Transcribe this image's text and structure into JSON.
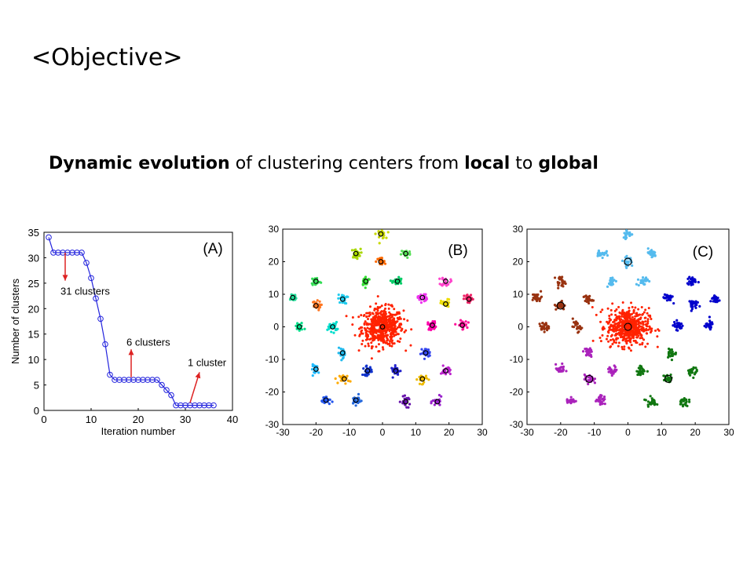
{
  "slide": {
    "title": "<Objective>",
    "subtitle": {
      "bold1": "Dynamic evolution",
      "text1": " of clustering centers from ",
      "bold2": "local",
      "text2": " to ",
      "bold3": "global"
    }
  },
  "chart_data": [
    {
      "type": "line",
      "panel_label": "(A)",
      "xlabel": "Iteration number",
      "ylabel": "Number of clusters",
      "xlim": [
        0,
        40
      ],
      "ylim": [
        0,
        35
      ],
      "x_ticks": [
        0,
        10,
        20,
        30,
        40
      ],
      "y_ticks": [
        0,
        5,
        10,
        15,
        20,
        25,
        30,
        35
      ],
      "line_color": "#2222dd",
      "x": [
        1,
        2,
        3,
        4,
        5,
        6,
        7,
        8,
        9,
        10,
        11,
        12,
        13,
        14,
        15,
        16,
        17,
        18,
        19,
        20,
        21,
        22,
        23,
        24,
        25,
        26,
        27,
        28,
        29,
        30,
        31,
        32,
        33,
        34,
        35,
        36
      ],
      "y": [
        34,
        31,
        31,
        31,
        31,
        31,
        31,
        31,
        29,
        26,
        22,
        18,
        13,
        7,
        6,
        6,
        6,
        6,
        6,
        6,
        6,
        6,
        6,
        6,
        5,
        4,
        3,
        1,
        1,
        1,
        1,
        1,
        1,
        1,
        1,
        1
      ],
      "annotations": [
        {
          "text": "31 clusters",
          "x": 3.5,
          "y": 23.5,
          "arrow_from": [
            4.5,
            31
          ],
          "arrow_to": [
            4.5,
            25.5
          ],
          "arrow_color": "#dd2222"
        },
        {
          "text": "6 clusters",
          "x": 17.5,
          "y": 13.5,
          "arrow_from": [
            18.5,
            6.5
          ],
          "arrow_to": [
            18.5,
            12
          ],
          "arrow_color": "#dd2222"
        },
        {
          "text": "1 cluster",
          "x": 30.5,
          "y": 9.5,
          "arrow_from": [
            31,
            1.5
          ],
          "arrow_to": [
            33,
            7.5
          ],
          "arrow_color": "#dd2222"
        }
      ]
    },
    {
      "type": "scatter",
      "panel_label": "(B)",
      "xlim": [
        -30,
        30
      ],
      "ylim": [
        -30,
        30
      ],
      "x_ticks": [
        -30,
        -20,
        -10,
        0,
        10,
        20,
        30
      ],
      "y_ticks": [
        -30,
        -20,
        -10,
        0,
        10,
        20,
        30
      ],
      "center_marker": "black ring",
      "clusters": [
        {
          "x": 0,
          "y": 0,
          "color": "#ff2200",
          "size": "large"
        },
        {
          "x": -0.5,
          "y": 28.5,
          "color": "#c8d800"
        },
        {
          "x": -8,
          "y": 22.5,
          "color": "#a8d800"
        },
        {
          "x": -0.5,
          "y": 20,
          "color": "#ff6a00"
        },
        {
          "x": 7,
          "y": 22.5,
          "color": "#55e055"
        },
        {
          "x": -20,
          "y": 14,
          "color": "#33dd55"
        },
        {
          "x": -5,
          "y": 14,
          "color": "#33dd33"
        },
        {
          "x": 4.5,
          "y": 14,
          "color": "#00cc66"
        },
        {
          "x": 19,
          "y": 14,
          "color": "#ff44cc"
        },
        {
          "x": -27,
          "y": 9,
          "color": "#22dd99"
        },
        {
          "x": -20,
          "y": 6.5,
          "color": "#ff7722"
        },
        {
          "x": -12,
          "y": 8.5,
          "color": "#22ccee"
        },
        {
          "x": 12,
          "y": 9,
          "color": "#ee33ee"
        },
        {
          "x": 19,
          "y": 7,
          "color": "#eedd00"
        },
        {
          "x": 26,
          "y": 8.5,
          "color": "#ee2266"
        },
        {
          "x": -25,
          "y": 0,
          "color": "#00dd88"
        },
        {
          "x": -15,
          "y": 0,
          "color": "#00ddcc"
        },
        {
          "x": 15,
          "y": 0.5,
          "color": "#ff00aa"
        },
        {
          "x": 24,
          "y": 0.5,
          "color": "#ff1199"
        },
        {
          "x": -12,
          "y": -8,
          "color": "#22bbee"
        },
        {
          "x": 13,
          "y": -8,
          "color": "#3344ee"
        },
        {
          "x": -20,
          "y": -13,
          "color": "#22bbff"
        },
        {
          "x": -11.5,
          "y": -16,
          "color": "#ffaa00"
        },
        {
          "x": -4.5,
          "y": -13.5,
          "color": "#1133cc"
        },
        {
          "x": 4,
          "y": -13.5,
          "color": "#2222cc"
        },
        {
          "x": 12,
          "y": -16,
          "color": "#eebb00"
        },
        {
          "x": 19,
          "y": -13.5,
          "color": "#bb22cc"
        },
        {
          "x": -17,
          "y": -22.5,
          "color": "#2255ee"
        },
        {
          "x": -8,
          "y": -22.5,
          "color": "#2266dd"
        },
        {
          "x": 7,
          "y": -23,
          "color": "#6611aa"
        },
        {
          "x": 16.5,
          "y": -23,
          "color": "#9922cc"
        }
      ]
    },
    {
      "type": "scatter",
      "panel_label": "(C)",
      "xlim": [
        -30,
        30
      ],
      "ylim": [
        -30,
        30
      ],
      "x_ticks": [
        -30,
        -20,
        -10,
        0,
        10,
        20,
        30
      ],
      "y_ticks": [
        -30,
        -20,
        -10,
        0,
        10,
        20,
        30
      ],
      "center_marker": "black ring",
      "clusters": [
        {
          "x": 0,
          "y": 0,
          "color": "#ff2200",
          "size": "large",
          "center": true
        },
        {
          "x": 0,
          "y": 28.5,
          "color": "#55bbee"
        },
        {
          "x": -8,
          "y": 22.5,
          "color": "#55bbee"
        },
        {
          "x": 0,
          "y": 20,
          "color": "#55bbee",
          "center": true
        },
        {
          "x": 7,
          "y": 22.5,
          "color": "#55bbee"
        },
        {
          "x": -5,
          "y": 14,
          "color": "#55bbee"
        },
        {
          "x": 4.5,
          "y": 14,
          "color": "#55bbee"
        },
        {
          "x": -20,
          "y": 14,
          "color": "#993311"
        },
        {
          "x": -27,
          "y": 9,
          "color": "#993311"
        },
        {
          "x": -20,
          "y": 6.5,
          "color": "#993311",
          "center": true
        },
        {
          "x": -12,
          "y": 8.5,
          "color": "#993311"
        },
        {
          "x": -25,
          "y": 0,
          "color": "#993311"
        },
        {
          "x": -15,
          "y": 0,
          "color": "#993311"
        },
        {
          "x": 19,
          "y": 14,
          "color": "#0000cc"
        },
        {
          "x": 12,
          "y": 9,
          "color": "#0000cc"
        },
        {
          "x": 19,
          "y": 7,
          "color": "#0000cc"
        },
        {
          "x": 26,
          "y": 8.5,
          "color": "#0000cc"
        },
        {
          "x": 15,
          "y": 0.5,
          "color": "#0000cc"
        },
        {
          "x": 24,
          "y": 0.5,
          "color": "#0000cc"
        },
        {
          "x": -12,
          "y": -8,
          "color": "#aa22bb"
        },
        {
          "x": -20,
          "y": -13,
          "color": "#aa22bb"
        },
        {
          "x": -11.5,
          "y": -16,
          "color": "#aa22bb",
          "center": true
        },
        {
          "x": -17,
          "y": -22.5,
          "color": "#aa22bb"
        },
        {
          "x": -8,
          "y": -22.5,
          "color": "#aa22bb"
        },
        {
          "x": -4.5,
          "y": -13.5,
          "color": "#aa22bb"
        },
        {
          "x": 13,
          "y": -8,
          "color": "#117711"
        },
        {
          "x": 4,
          "y": -13.5,
          "color": "#117711"
        },
        {
          "x": 12,
          "y": -16,
          "color": "#117711",
          "center": true
        },
        {
          "x": 19,
          "y": -13.5,
          "color": "#117711"
        },
        {
          "x": 7,
          "y": -23,
          "color": "#117711"
        },
        {
          "x": 16.5,
          "y": -23,
          "color": "#117711"
        }
      ]
    }
  ]
}
